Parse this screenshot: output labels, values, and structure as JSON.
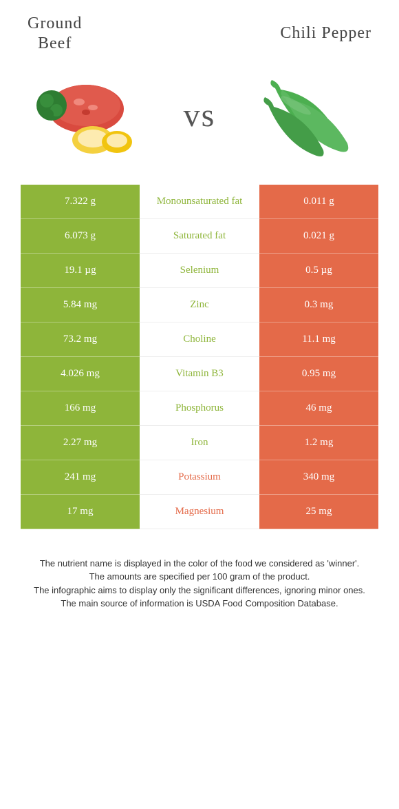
{
  "colors": {
    "left": "#8eb53a",
    "right": "#e46a49",
    "label_left": "#8eb53a",
    "label_right": "#e46a49",
    "text": "#444444",
    "footer": "#333333"
  },
  "header": {
    "left_title_line1": "Ground",
    "left_title_line2": "Beef",
    "right_title": "Chili Pepper",
    "vs": "vs"
  },
  "rows": [
    {
      "left": "7.322 g",
      "label": "Monounsaturated fat",
      "right": "0.011 g",
      "winner": "left"
    },
    {
      "left": "6.073 g",
      "label": "Saturated fat",
      "right": "0.021 g",
      "winner": "left"
    },
    {
      "left": "19.1 µg",
      "label": "Selenium",
      "right": "0.5 µg",
      "winner": "left"
    },
    {
      "left": "5.84 mg",
      "label": "Zinc",
      "right": "0.3 mg",
      "winner": "left"
    },
    {
      "left": "73.2 mg",
      "label": "Choline",
      "right": "11.1 mg",
      "winner": "left"
    },
    {
      "left": "4.026 mg",
      "label": "Vitamin B3",
      "right": "0.95 mg",
      "winner": "left"
    },
    {
      "left": "166 mg",
      "label": "Phosphorus",
      "right": "46 mg",
      "winner": "left"
    },
    {
      "left": "2.27 mg",
      "label": "Iron",
      "right": "1.2 mg",
      "winner": "left"
    },
    {
      "left": "241 mg",
      "label": "Potassium",
      "right": "340 mg",
      "winner": "right"
    },
    {
      "left": "17 mg",
      "label": "Magnesium",
      "right": "25 mg",
      "winner": "right"
    }
  ],
  "footer": {
    "line1": "The nutrient name is displayed in the color of the food we considered as 'winner'.",
    "line2": "The amounts are specified per 100 gram of the product.",
    "line3": "The infographic aims to display only the significant differences, ignoring minor ones.",
    "line4": "The main source of information is USDA Food Composition Database."
  }
}
